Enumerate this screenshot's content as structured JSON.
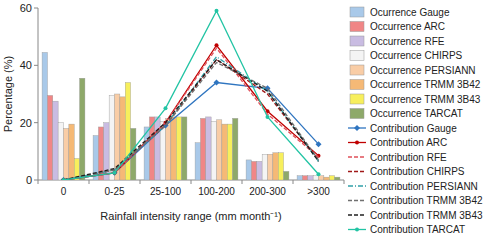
{
  "chart_data": {
    "type": "bar",
    "y_label": "Percentage (%)",
    "x_label": "Rainfall intensity range (mm month⁻¹)",
    "categories": [
      "0",
      "0-25",
      "25-100",
      "100-200",
      "200-300",
      ">300"
    ],
    "ylim": [
      0,
      60
    ],
    "yticks": [
      0,
      20,
      40,
      60
    ],
    "grid": false,
    "legend": "right",
    "series": [
      {
        "name": "Ocurrence Gauge",
        "type": "bar",
        "color": "#a9c9e9",
        "values": [
          44.5,
          15.5,
          18.5,
          13,
          7,
          1.5
        ]
      },
      {
        "name": "Occurrence ARC",
        "type": "bar",
        "color": "#f08686",
        "values": [
          29.5,
          18.5,
          22,
          21.5,
          6.5,
          1.5
        ]
      },
      {
        "name": "Occurrence RFE",
        "type": "bar",
        "color": "#c9bce2",
        "values": [
          27.5,
          20,
          22,
          22,
          6.5,
          1.5
        ]
      },
      {
        "name": "Occurrence CHIRPS",
        "type": "bar",
        "color": "#f4f4f4",
        "values": [
          20,
          29.5,
          20.5,
          20.5,
          9,
          1.5
        ]
      },
      {
        "name": "Occurrence PERSIANN",
        "type": "bar",
        "color": "#f9cda6",
        "values": [
          18,
          30,
          21.5,
          21,
          9,
          1.5
        ]
      },
      {
        "name": "Occurrence TRMM 3B42",
        "type": "bar",
        "color": "#f5b976",
        "values": [
          19.5,
          29,
          22,
          19.5,
          9.5,
          1
        ]
      },
      {
        "name": "Occurrence TRMM 3B43",
        "type": "bar",
        "color": "#f7ef5c",
        "values": [
          7.5,
          34,
          22,
          19.5,
          9.5,
          1.5
        ]
      },
      {
        "name": "Occurrence TARCAT",
        "type": "bar",
        "color": "#8ea96a",
        "values": [
          35.5,
          18,
          22,
          21.5,
          3,
          1
        ]
      },
      {
        "name": "Contribution Gauge",
        "type": "line",
        "color": "#2f75c0",
        "line_style": "solid",
        "marker": "diamond",
        "values": [
          0,
          2.5,
          19,
          34,
          32,
          12.5
        ]
      },
      {
        "name": "Contribution ARC",
        "type": "line",
        "color": "#c00000",
        "line_style": "solid",
        "marker": "circle",
        "values": [
          0,
          2.5,
          20,
          47,
          24,
          8.5
        ]
      },
      {
        "name": "Contribution RFE",
        "type": "line",
        "color": "#e0505a",
        "line_style": "dashed",
        "marker": "none",
        "values": [
          0,
          2.5,
          20,
          46,
          23,
          8
        ]
      },
      {
        "name": "Contribution CHIRPS",
        "type": "line",
        "color": "#a01818",
        "line_style": "dashed",
        "marker": "none",
        "values": [
          0,
          3.5,
          19,
          42,
          30,
          7
        ]
      },
      {
        "name": "Contribution PERSIANN",
        "type": "line",
        "color": "#30a0a8",
        "line_style": "dashdot",
        "marker": "none",
        "values": [
          0,
          3.5,
          19,
          43,
          31,
          6.5
        ]
      },
      {
        "name": "Contribution TRMM 3B42",
        "type": "line",
        "color": "#707070",
        "line_style": "dashed",
        "marker": "none",
        "values": [
          0,
          3.5,
          19,
          41,
          32,
          7
        ]
      },
      {
        "name": "Contribution TRMM 3B43",
        "type": "line",
        "color": "#202020",
        "line_style": "dashed",
        "marker": "none",
        "values": [
          0,
          4,
          20,
          42,
          31,
          6.5
        ]
      },
      {
        "name": "Contribution TARCAT",
        "type": "line",
        "color": "#22c4a4",
        "line_style": "solid",
        "marker": "circle",
        "values": [
          0,
          2.5,
          25,
          59,
          22,
          2
        ]
      }
    ]
  }
}
